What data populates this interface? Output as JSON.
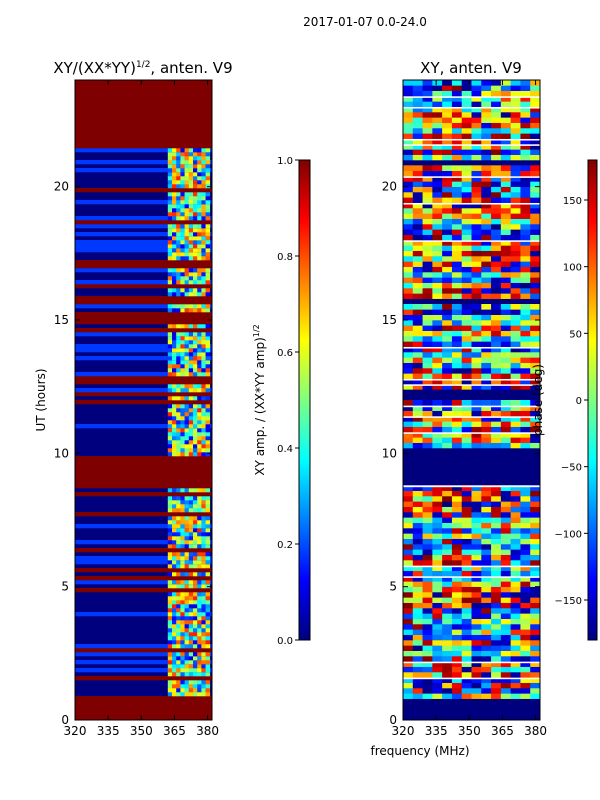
{
  "suptitle": "2017-01-07 0.0-24.0",
  "xlabel_shared": "frequency (MHz)",
  "colors": {
    "jet": [
      "#00007f",
      "#0000ff",
      "#007fff",
      "#00ffff",
      "#7fff7f",
      "#ffff00",
      "#ff7f00",
      "#ff0000",
      "#7f0000"
    ],
    "flag": "#7f0000",
    "background": "#00007f"
  },
  "chart_data": [
    {
      "type": "heatmap",
      "title_base": "XY/(XX*YY)",
      "title_sup": "1/2",
      "title_suffix": ", anten. V9",
      "ylabel": "UT (hours)",
      "xlim": [
        320,
        382
      ],
      "ylim": [
        0,
        24
      ],
      "xticks": [
        320,
        335,
        350,
        365,
        380
      ],
      "xtick_labels": [
        "320",
        "335",
        "350",
        "365",
        "380"
      ],
      "yticks": [
        0,
        5,
        10,
        15,
        20
      ],
      "ytick_labels": [
        "0",
        "5",
        "10",
        "15",
        "20"
      ],
      "flagged_blocks_hours": [
        [
          0,
          0.75
        ],
        [
          8.6,
          9.9
        ],
        [
          12.5,
          13.0
        ],
        [
          16.9,
          17.2
        ],
        [
          21.6,
          24
        ]
      ],
      "colorbar": {
        "label_base": "XY amp. / (XX*YY amp)",
        "label_sup": "1/2",
        "range": [
          0.0,
          1.0
        ],
        "ticks": [
          0.0,
          0.2,
          0.4,
          0.6,
          0.8,
          1.0
        ],
        "tick_labels": [
          "0.0",
          "0.2",
          "0.4",
          "0.6",
          "0.8",
          "1.0"
        ]
      }
    },
    {
      "type": "heatmap",
      "title": "XY, anten. V9",
      "xlim": [
        320,
        382
      ],
      "ylim": [
        0,
        24
      ],
      "xticks": [
        320,
        335,
        350,
        365,
        380
      ],
      "xtick_labels": [
        "320",
        "335",
        "350",
        "365",
        "380"
      ],
      "yticks": [
        0,
        5,
        10,
        15,
        20
      ],
      "ytick_labels": [
        "0",
        "5",
        "10",
        "15",
        "20"
      ],
      "blank_blocks_hours": [
        [
          0,
          0.8
        ],
        [
          8.7,
          10.3
        ],
        [
          12.0,
          12.4
        ],
        [
          15.5,
          15.8
        ],
        [
          20.7,
          21.1
        ]
      ],
      "colorbar": {
        "label": "phase (deg)",
        "range": [
          -180,
          180
        ],
        "ticks": [
          -150,
          -100,
          -50,
          0,
          50,
          100,
          150
        ],
        "tick_labels": [
          "−150",
          "−100",
          "−50",
          "0",
          "50",
          "100",
          "150"
        ]
      }
    }
  ]
}
